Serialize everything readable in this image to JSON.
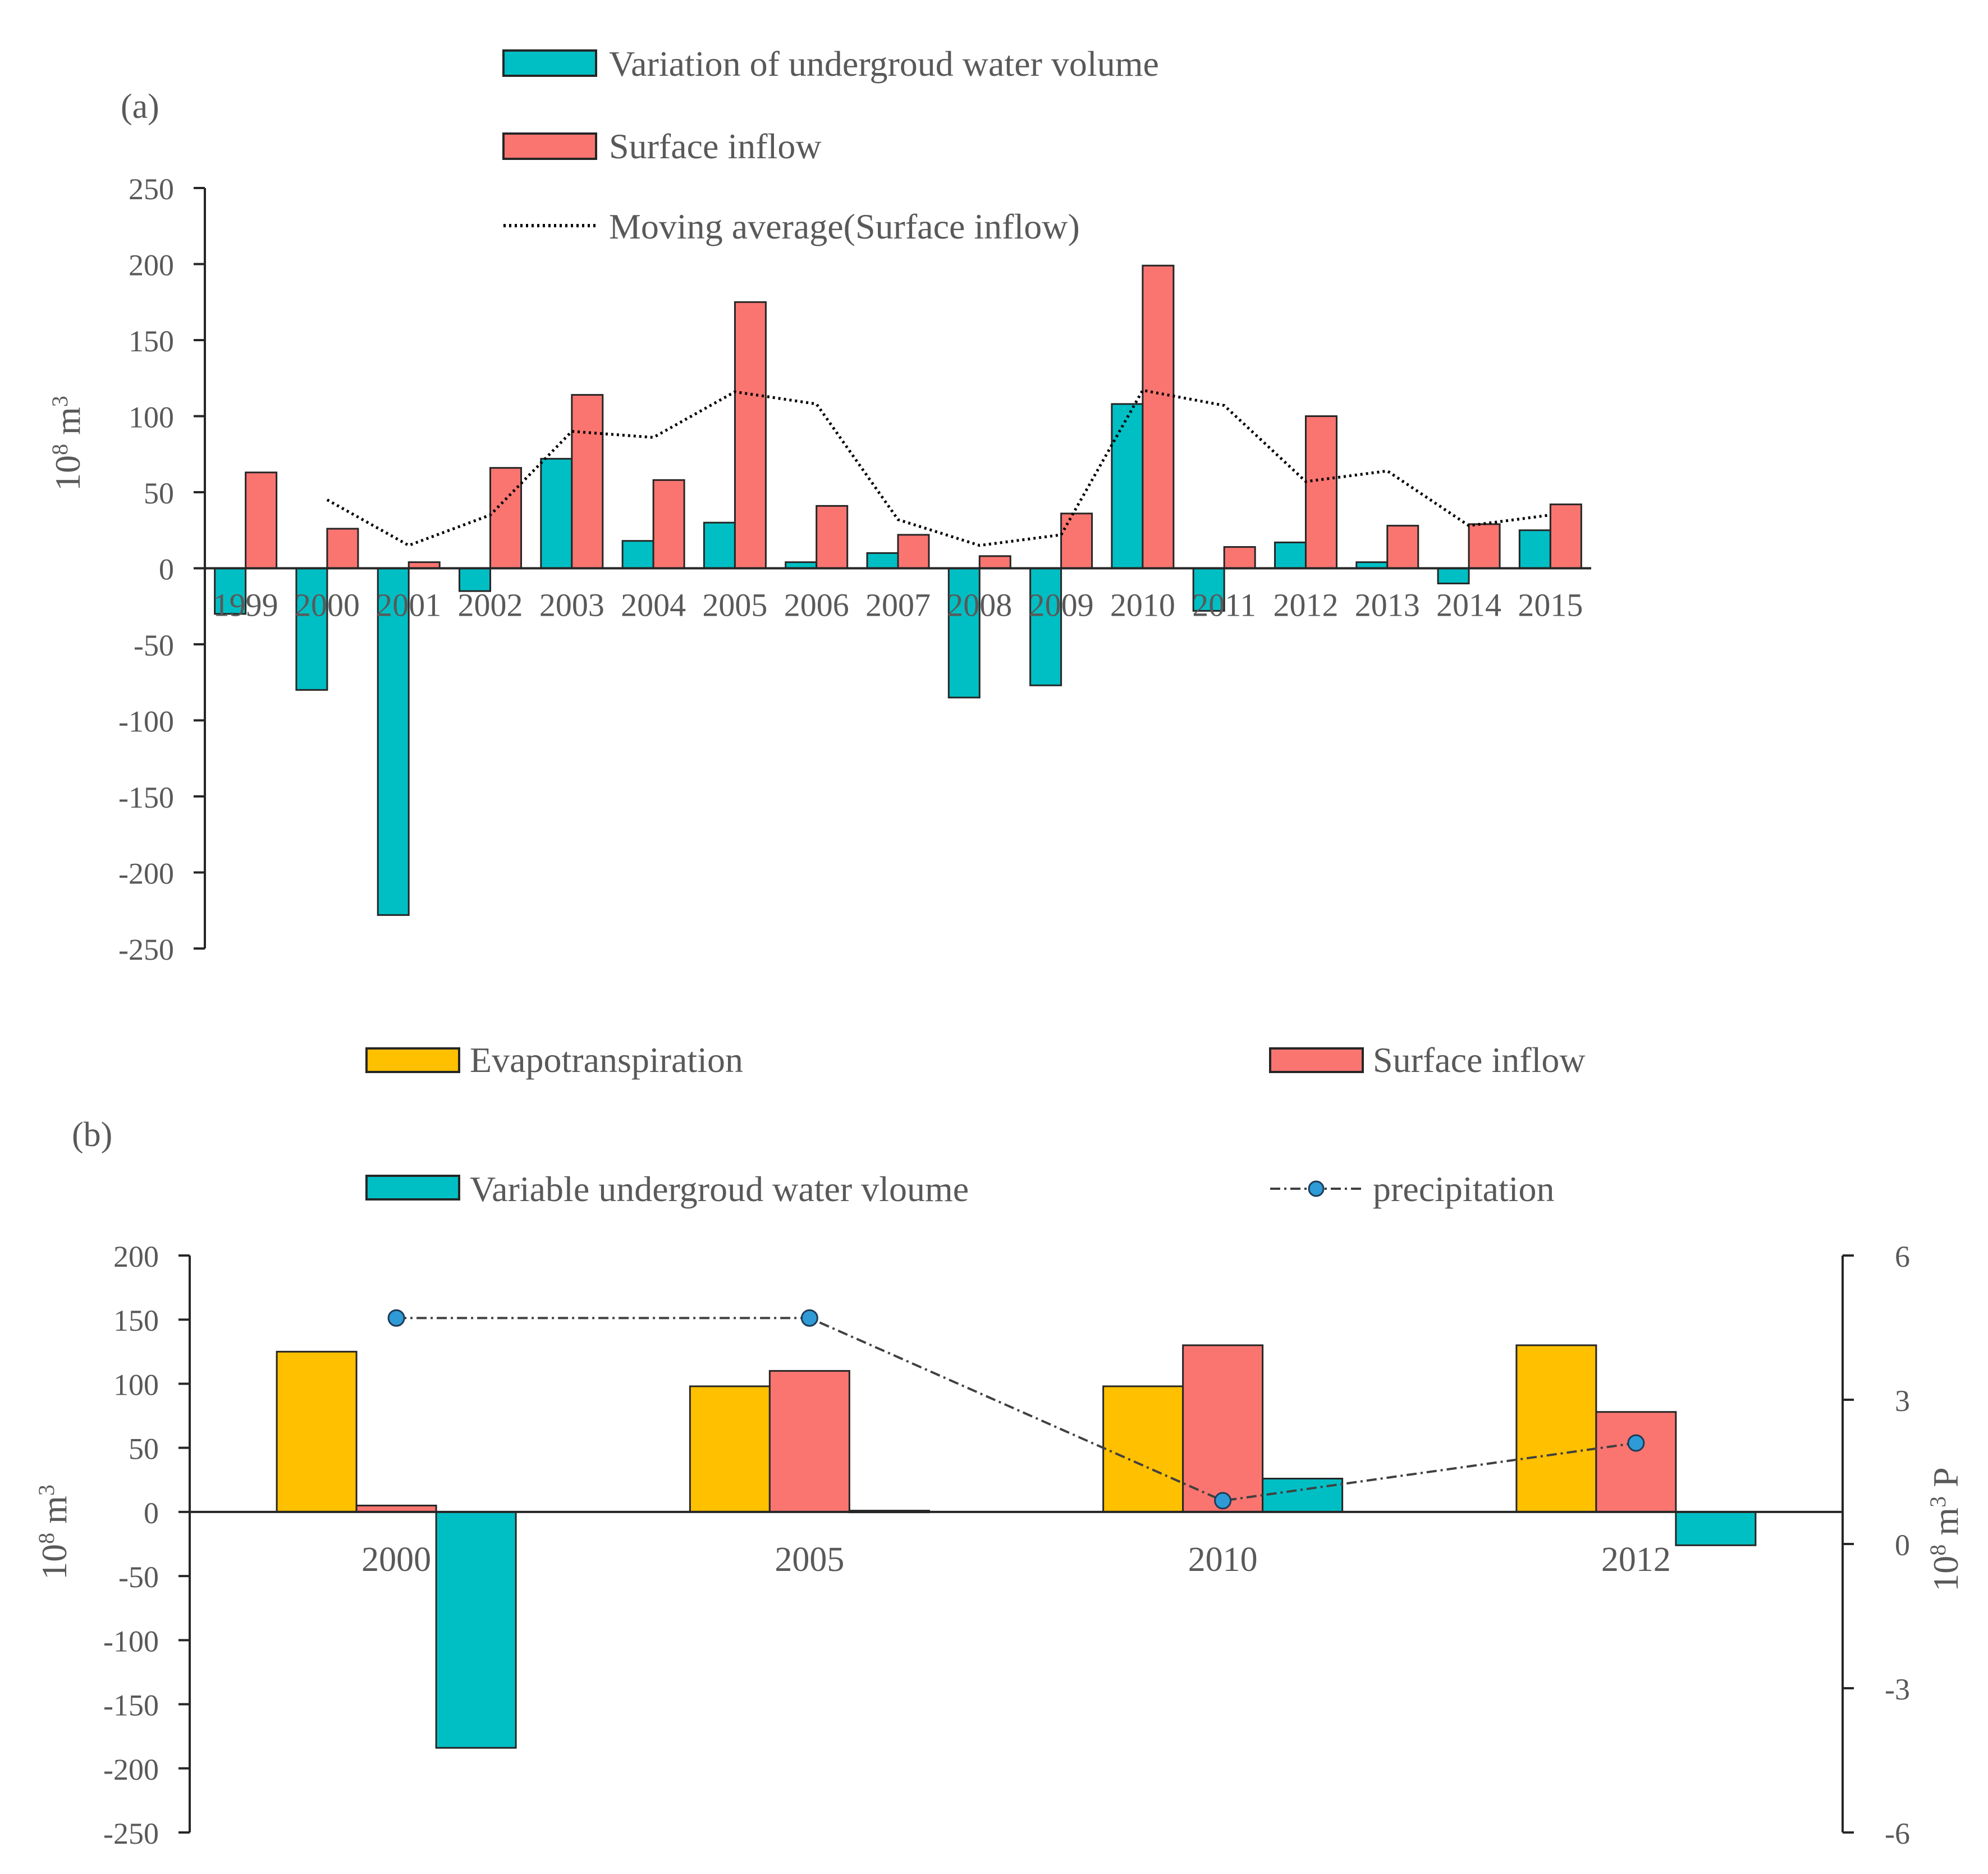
{
  "chart_data": [
    {
      "panel_label": "(a)",
      "type": "bar",
      "ylabel_base": "10",
      "ylabel_exp": "8",
      "ylabel_unit": " m",
      "ylabel_unit_exp": "3",
      "ylim": [
        -250,
        250
      ],
      "yticks": [
        250,
        200,
        150,
        100,
        50,
        0,
        -50,
        -100,
        -150,
        -200,
        -250
      ],
      "categories": [
        "1999",
        "2000",
        "2001",
        "2002",
        "2003",
        "2004",
        "2005",
        "2006",
        "2007",
        "2008",
        "2009",
        "2010",
        "2011",
        "2012",
        "2013",
        "2014",
        "2015"
      ],
      "series": [
        {
          "name": "Variation of undergroud water volume",
          "kind": "bar",
          "color": "#00BFC4",
          "values": [
            -30,
            -80,
            -228,
            -15,
            72,
            18,
            30,
            4,
            10,
            -85,
            -77,
            108,
            -28,
            17,
            4,
            -10,
            25
          ]
        },
        {
          "name": "Surface inflow",
          "kind": "bar",
          "color": "#FA7570",
          "values": [
            63,
            26,
            4,
            66,
            114,
            58,
            175,
            41,
            22,
            8,
            36,
            199,
            14,
            100,
            28,
            29,
            42
          ]
        },
        {
          "name": "Moving average(Surface inflow)",
          "kind": "line",
          "style": "dotted",
          "color": "#000000",
          "values": [
            null,
            45,
            15,
            35,
            90,
            86,
            116,
            108,
            32,
            15,
            22,
            117,
            107,
            57,
            64,
            28,
            35
          ]
        }
      ],
      "legend_position": "top"
    },
    {
      "panel_label": "(b)",
      "type": "bar",
      "ylabel_base": "10",
      "ylabel_exp": "8",
      "ylabel_unit": " m",
      "ylabel_unit_exp": "3",
      "y2label_base": "10",
      "y2label_exp": "8",
      "y2label_unit": " m",
      "y2label_unit_exp": "3",
      "y2label_suffix": " P",
      "ylim": [
        -250,
        200
      ],
      "yticks": [
        200,
        150,
        100,
        50,
        0,
        -50,
        -100,
        -150,
        -200,
        -250
      ],
      "y2lim": [
        -6,
        6
      ],
      "y2ticks": [
        6,
        3,
        0,
        -3,
        -6
      ],
      "categories": [
        "2000",
        "2005",
        "2010",
        "2012"
      ],
      "series": [
        {
          "name": "Evapotranspiration",
          "kind": "bar",
          "color": "#FFC000",
          "values": [
            125,
            98,
            98,
            130
          ]
        },
        {
          "name": "Surface inflow",
          "kind": "bar",
          "color": "#FA7570",
          "values": [
            5,
            110,
            130,
            78
          ]
        },
        {
          "name": "Variable undergroud water vloume",
          "kind": "bar",
          "color": "#00BFC4",
          "values": [
            -184,
            1,
            26,
            -26
          ]
        },
        {
          "name": "precipitation",
          "kind": "line",
          "axis": "right",
          "style": "dash-dot",
          "color": "#404040",
          "marker_color": "#2E9BD6",
          "values": [
            4.7,
            4.7,
            0.9,
            2.1
          ]
        }
      ],
      "legend_position": "top"
    }
  ]
}
